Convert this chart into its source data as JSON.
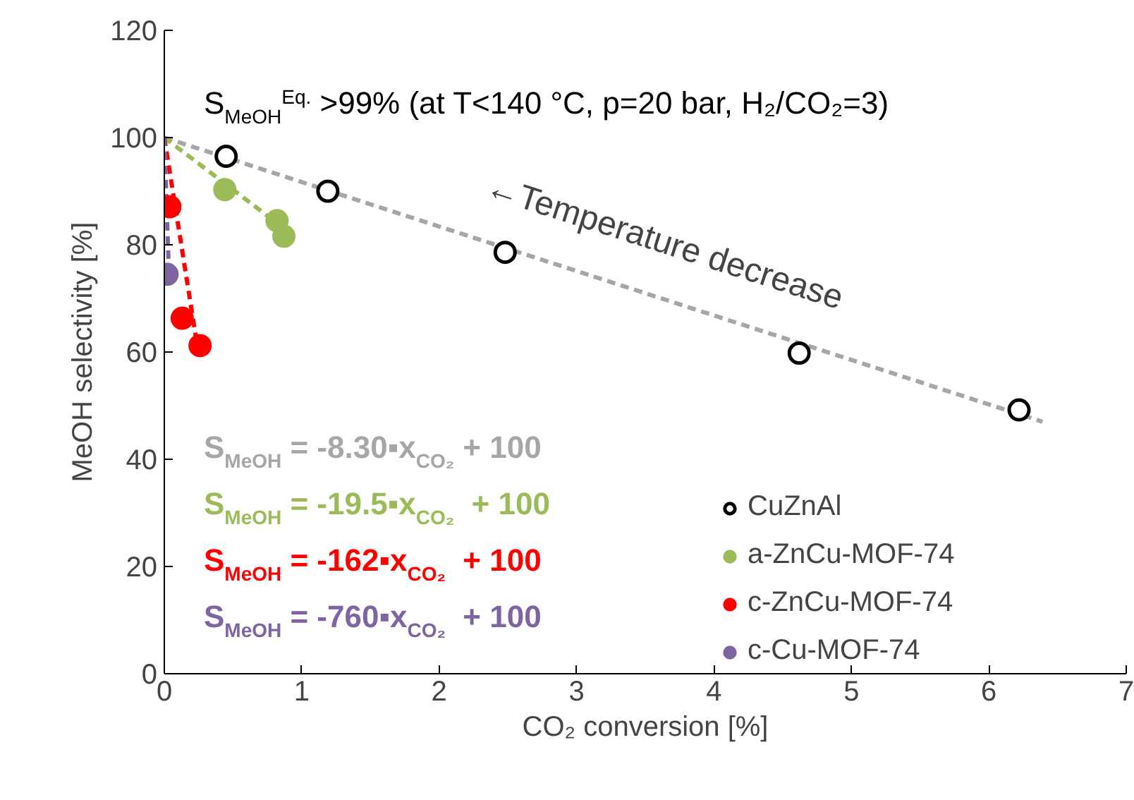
{
  "chart_data": {
    "type": "scatter",
    "title": "S$_{MeOH}$$^{Eq.}$ >99% (at T<140 °C, p=20 bar, H₂/CO₂=3)",
    "xlabel": "CO₂ conversion [%]",
    "ylabel": "MeOH selectivity [%]",
    "xlim": [
      0,
      7
    ],
    "ylim": [
      0,
      120
    ],
    "xticks": [
      0,
      1,
      2,
      3,
      4,
      5,
      6,
      7
    ],
    "yticks": [
      0,
      20,
      40,
      60,
      80,
      100,
      120
    ],
    "grid": false,
    "legend": "bottom",
    "marker": "circle",
    "series": [
      {
        "type": "line",
        "marker": "none",
        "line_style": "dashed",
        "color": "#a6a6a6",
        "x": [
          0,
          6.39
        ],
        "values": [
          100,
          47
        ]
      },
      {
        "type": "line",
        "marker": "none",
        "line_style": "dashed",
        "color": "#9bbb59",
        "x": [
          0,
          0.9
        ],
        "values": [
          100,
          82.5
        ]
      },
      {
        "type": "line",
        "marker": "none",
        "line_style": "dashed",
        "color": "#ff0000",
        "x": [
          0,
          0.25
        ],
        "values": [
          100,
          59.5
        ]
      },
      {
        "type": "line",
        "marker": "none",
        "line_style": "dashed",
        "color": "#8064a2",
        "x": [
          0,
          0.033
        ],
        "values": [
          100,
          75
        ]
      },
      {
        "name": "CuZnAl",
        "color": "#000000",
        "x": [
          0.45,
          1.19,
          2.48,
          4.62,
          6.22
        ],
        "values": [
          96.5,
          90,
          78.6,
          59.8,
          49.2
        ]
      },
      {
        "name": "a-ZnCu-MOF-74",
        "color": "#9bbb59",
        "x": [
          0.44,
          0.82,
          0.87
        ],
        "values": [
          90.3,
          84.5,
          81.6
        ]
      },
      {
        "name": "c-ZnCu-MOF-74",
        "color": "#ff0000",
        "x": [
          0.04,
          0.13,
          0.26
        ],
        "values": [
          87.1,
          66.3,
          61.2
        ]
      },
      {
        "name": "c-Cu-MOF-74",
        "color": "#8064a2",
        "x": [
          0.02
        ],
        "values": [
          74.5
        ]
      }
    ],
    "annotations": [
      "←Temperature decrease",
      "S$_{MeOH}$ = -8.30▪x$_{CO₂}$ + 100",
      "S$_{MeOH}$ = -19.5▪x$_{CO₂}$  + 100",
      "S$_{MeOH}$ = -162▪x$_{CO₂}$  + 100",
      "S$_{MeOH}$ = -760▪x$_{CO₂}$  + 100"
    ]
  }
}
